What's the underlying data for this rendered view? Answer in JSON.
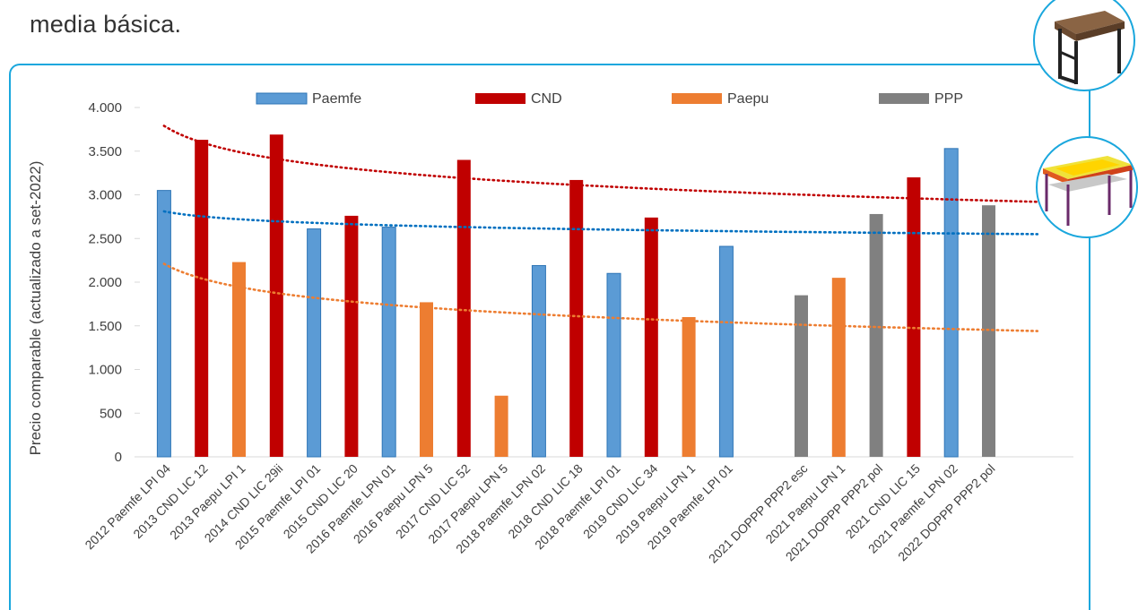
{
  "intro": {
    "text": "media básica."
  },
  "chart_data": {
    "type": "bar",
    "ylabel": "Precio comparable (actualizado a set-2022)",
    "ylim": [
      0,
      4000
    ],
    "yticks": [
      0,
      500,
      1000,
      1500,
      2000,
      2500,
      3000,
      3500,
      4000
    ],
    "ytick_labels": [
      "0",
      "500",
      "1.000",
      "1.500",
      "2.000",
      "2.500",
      "3.000",
      "3.500",
      "4.000"
    ],
    "grid": false,
    "legend_position": "top",
    "series_colors": {
      "Paemfe": "#5b9bd5",
      "CND": "#c00000",
      "Paepu": "#ed7d31",
      "PPP": "#808080"
    },
    "legend": [
      "Paemfe",
      "CND",
      "Paepu",
      "PPP"
    ],
    "categories": [
      {
        "label": "2012 Paemfe LPI 04",
        "series": "Paemfe",
        "value": 3050
      },
      {
        "label": "2013 CND LIC 12",
        "series": "CND",
        "value": 3630
      },
      {
        "label": "2013 Paepu LPI 1",
        "series": "Paepu",
        "value": 2230
      },
      {
        "label": "2014 CND LIC 29ii",
        "series": "CND",
        "value": 3690
      },
      {
        "label": "2015 Paemfe LPI 01",
        "series": "Paemfe",
        "value": 2610
      },
      {
        "label": "2015 CND LIC 20",
        "series": "CND",
        "value": 2760
      },
      {
        "label": "2016 Paemfe LPN 01",
        "series": "Paemfe",
        "value": 2630
      },
      {
        "label": "2016 Paepu LPN 5",
        "series": "Paepu",
        "value": 1770
      },
      {
        "label": "2017 CND LIC 52",
        "series": "CND",
        "value": 3400
      },
      {
        "label": "2017 Paepu LPN 5",
        "series": "Paepu",
        "value": 700
      },
      {
        "label": "2018 Paemfe LPN 02",
        "series": "Paemfe",
        "value": 2190
      },
      {
        "label": "2018 CND LIC 18",
        "series": "CND",
        "value": 3170
      },
      {
        "label": "2018 Paemfe LPI 01",
        "series": "Paemfe",
        "value": 2100
      },
      {
        "label": "2019 CND LIC 34",
        "series": "CND",
        "value": 2740
      },
      {
        "label": "2019 Paepu LPN 1",
        "series": "Paepu",
        "value": 1600
      },
      {
        "label": "2019 Paemfe LPI 01",
        "series": "Paemfe",
        "value": 2410
      },
      {
        "label": "",
        "series": null,
        "value": null
      },
      {
        "label": "2021 DOPPP PPP2 esc",
        "series": "PPP",
        "value": 1850
      },
      {
        "label": "2021 Paepu LPN 1",
        "series": "Paepu",
        "value": 2050
      },
      {
        "label": "2021 DOPPP PPP2 pol",
        "series": "PPP",
        "value": 2780
      },
      {
        "label": "2021 CND LIC 15",
        "series": "CND",
        "value": 3200
      },
      {
        "label": "2021 Paemfe LPN 02",
        "series": "Paemfe",
        "value": 3530
      },
      {
        "label": "2022 DOPPP PPP2 pol",
        "series": "PPP",
        "value": 2880
      }
    ],
    "trendlines": [
      {
        "series": "CND",
        "type": "logarithmic",
        "color": "#c00000",
        "start": 3790,
        "end": 2920
      },
      {
        "series": "Paemfe",
        "type": "logarithmic",
        "color": "#0070c0",
        "start": 2810,
        "end": 2550
      },
      {
        "series": "Paepu",
        "type": "logarithmic",
        "color": "#ed7d31",
        "start": 2210,
        "end": 1440
      }
    ]
  }
}
